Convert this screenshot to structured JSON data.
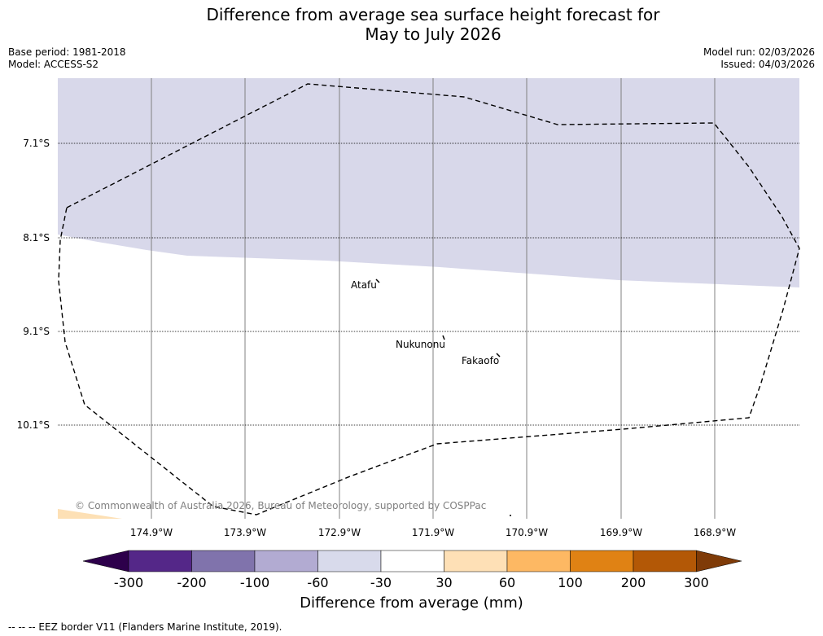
{
  "title_line1": "Difference from average sea surface height forecast for",
  "title_line2": "May to July 2026",
  "meta": {
    "base_period": "Base period: 1981-2018",
    "model": "Model: ACCESS-S2",
    "model_run": "Model run: 02/03/2026",
    "issued": "Issued: 04/03/2026"
  },
  "map": {
    "latitudes": [
      "7.1°S",
      "8.1°S",
      "9.1°S",
      "10.1°S"
    ],
    "longitudes": [
      "174.9°W",
      "173.9°W",
      "172.9°W",
      "171.9°W",
      "170.9°W",
      "169.9°W",
      "168.9°W"
    ],
    "places": [
      "Atafu",
      "Nukunonu",
      "Fakaofo"
    ],
    "copyright": "© Commonwealth of Australia 2026, Bureau of Meteorology, supported by COSPPac",
    "colors": {
      "band_minus60_minus30": "#d8d8ea",
      "band_30_60": "#fde0b5",
      "border": "#000000"
    }
  },
  "colorbar": {
    "ticks": [
      "-300",
      "-200",
      "-100",
      "-60",
      "-30",
      "30",
      "60",
      "100",
      "200",
      "300"
    ],
    "colors": [
      "#2d004b",
      "#542788",
      "#8073ac",
      "#b2abd2",
      "#d8daeb",
      "#ffffff",
      "#fee0b6",
      "#fdb863",
      "#e08214",
      "#b35806",
      "#7f3b08"
    ],
    "label": "Difference from average (mm)"
  },
  "footnote": "--  --  -- EEZ border V11 (Flanders Marine Institute, 2019)."
}
